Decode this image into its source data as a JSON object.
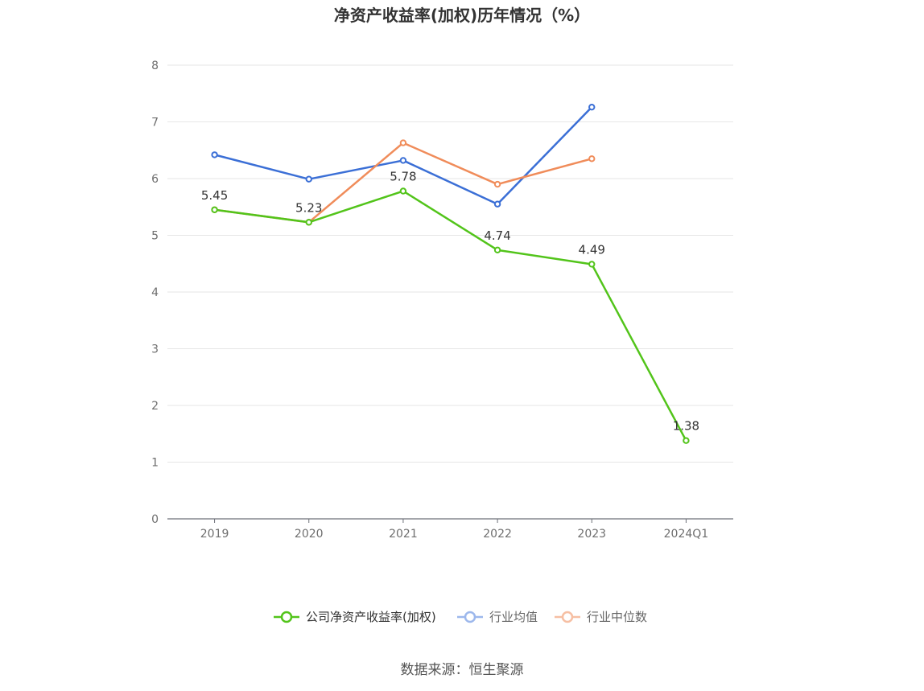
{
  "chart_data": {
    "type": "line",
    "title": "净资产收益率(加权)历年情况（%）",
    "categories": [
      "2019",
      "2020",
      "2021",
      "2022",
      "2023",
      "2024Q1"
    ],
    "ylim": [
      0,
      8
    ],
    "yticks": [
      "0",
      "1",
      "2",
      "3",
      "4",
      "5",
      "6",
      "7",
      "8"
    ],
    "grid": true,
    "legend_position": "bottom",
    "series": [
      {
        "name": "公司净资产收益率(加权)",
        "color": "#52c41a",
        "values": [
          5.45,
          5.23,
          5.78,
          4.74,
          4.49,
          1.38
        ],
        "labels": [
          "5.45",
          "5.23",
          "5.78",
          "4.74",
          "4.49",
          "1.38"
        ]
      },
      {
        "name": "行业均值",
        "color": "#3b6fd6",
        "legend_color": "#9db8ec",
        "values": [
          6.42,
          5.99,
          6.32,
          5.55,
          7.26,
          null
        ]
      },
      {
        "name": "行业中位数",
        "color": "#f08c5a",
        "legend_color": "#f6bfa3",
        "values": [
          5.45,
          5.23,
          6.63,
          5.9,
          6.35,
          null
        ]
      }
    ]
  },
  "source": "数据来源：恒生聚源"
}
